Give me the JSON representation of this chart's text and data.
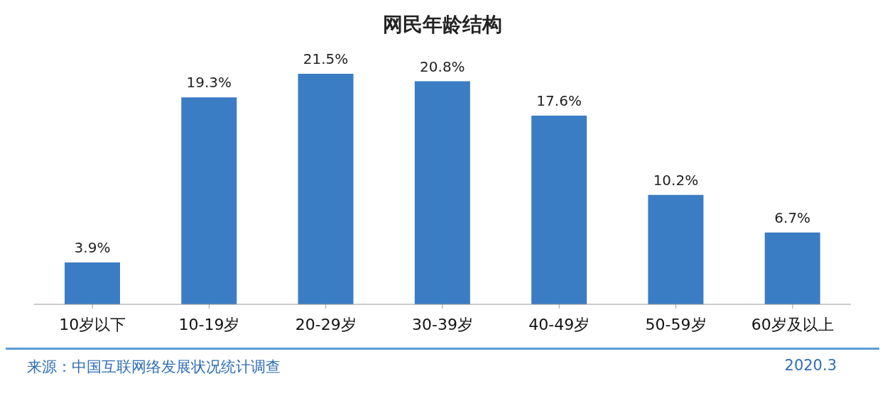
{
  "chart_data": {
    "type": "bar",
    "title": "网民年龄结构",
    "categories": [
      "10岁以下",
      "10-19岁",
      "20-29岁",
      "30-39岁",
      "40-49岁",
      "50-59岁",
      "60岁及以上"
    ],
    "values": [
      3.9,
      19.3,
      21.5,
      20.8,
      17.6,
      10.2,
      6.7
    ],
    "value_labels": [
      "3.9%",
      "19.3%",
      "21.5%",
      "20.8%",
      "17.6%",
      "10.2%",
      "6.7%"
    ],
    "color": "#3b7dc4",
    "annotations": [
      "来源：中国互联网络发展状况统计调查",
      "2020.3"
    ]
  }
}
